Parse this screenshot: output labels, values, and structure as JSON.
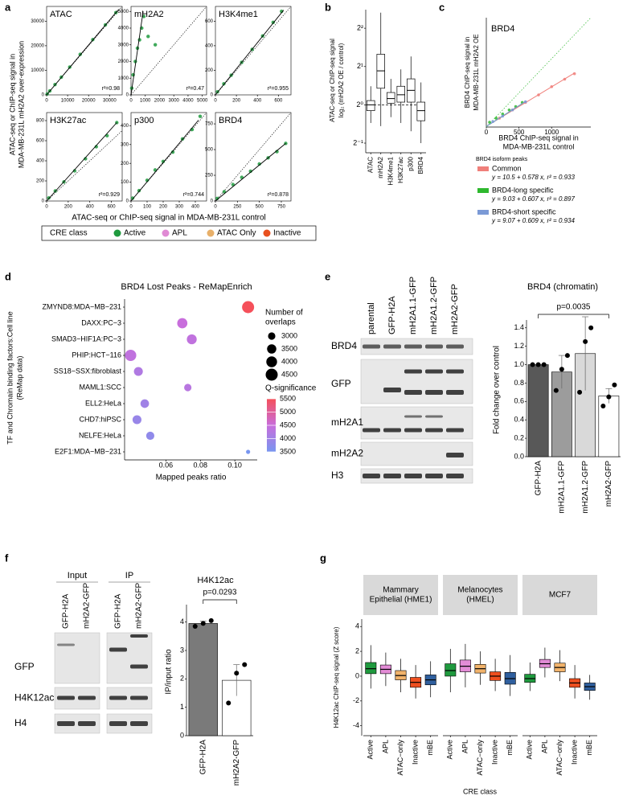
{
  "panel_labels": [
    "a",
    "b",
    "c",
    "d",
    "e",
    "f",
    "g"
  ],
  "blots": [
    {
      "lanes": [
        "parental",
        "GFP-H2A",
        "mH2A1.1-GFP",
        "mH2A1.2-GFP",
        "mH2A2-GFP"
      ],
      "rows": [
        "BRD4",
        "GFP",
        "mH2A1",
        "mH2A2",
        "H3"
      ]
    },
    {
      "groups": [
        {
          "name": "Input",
          "lanes": [
            "GFP-H2A",
            "mH2A2-GFP"
          ]
        },
        {
          "name": "IP",
          "lanes": [
            "GFP-H2A",
            "mH2A2-GFP"
          ]
        }
      ],
      "rows": [
        "GFP",
        "H4K12ac",
        "H4"
      ]
    }
  ],
  "chart_data": [
    {
      "type": "scatter_grid",
      "ylabel": [
        "ATAC-seq or ChIP-seq signal in",
        "MDA-MB-231L mH2A2 over-expression"
      ],
      "xlabel": "ATAC-seq or ChIP-seq signal in MDA-MB-231L control",
      "legend_title": "CRE class",
      "classes": [
        {
          "name": "Active",
          "color": "#1f9a3e"
        },
        {
          "name": "APL",
          "color": "#e08ad4"
        },
        {
          "name": "ATAC Only",
          "color": "#e8b06a"
        },
        {
          "name": "Inactive",
          "color": "#e8501e"
        }
      ],
      "panels": [
        {
          "title": "ATAC",
          "annotation": "r²=0.98",
          "xlim": [
            0,
            36000
          ],
          "ylim": [
            0,
            36000
          ],
          "xticks": [
            0,
            10000,
            20000,
            30000
          ],
          "yticks": [
            0,
            10000,
            20000,
            30000
          ],
          "points": {
            "x": [
              300,
              1500,
              4000,
              7000,
              11000,
              16000,
              22000,
              28000,
              33000
            ],
            "y": [
              400,
              1600,
              4200,
              7200,
              11300,
              16500,
              22500,
              28500,
              33500
            ]
          },
          "fit": {
            "x": [
              0,
              34000
            ],
            "y": [
              0,
              34500
            ]
          }
        },
        {
          "title": "mH2A2",
          "annotation": "r²=0.47",
          "xlim": [
            0,
            5300
          ],
          "ylim": [
            0,
            5300
          ],
          "xticks": [
            0,
            1000,
            2000,
            3000,
            4000,
            5000
          ],
          "yticks": [
            0,
            1000,
            2000,
            3000,
            4000,
            5000
          ],
          "points": {
            "x": [
              50,
              150,
              300,
              450,
              600,
              750,
              900,
              1200,
              1700
            ],
            "y": [
              400,
              1200,
              2000,
              2800,
              3300,
              4000,
              4700,
              3500,
              3000
            ]
          },
          "fit": {
            "x": [
              0,
              850
            ],
            "y": [
              0,
              5000
            ]
          }
        },
        {
          "title": "H3K4me1",
          "annotation": "r²=0.955",
          "xlim": [
            0,
            720
          ],
          "ylim": [
            0,
            720
          ],
          "xticks": [
            0,
            200,
            400,
            600
          ],
          "yticks": [
            0,
            200,
            400,
            600
          ],
          "points": {
            "x": [
              20,
              80,
              150,
              250,
              350,
              450,
              550,
              630
            ],
            "y": [
              25,
              90,
              160,
              265,
              370,
              480,
              590,
              680
            ]
          },
          "fit": {
            "x": [
              0,
              650
            ],
            "y": [
              0,
              690
            ]
          }
        },
        {
          "title": "H3K27ac",
          "annotation": "r²=0.929",
          "xlim": [
            0,
            700
          ],
          "ylim": [
            0,
            880
          ],
          "xticks": [
            0,
            200,
            400,
            600
          ],
          "yticks": [
            0,
            200,
            400,
            600,
            800
          ],
          "points": {
            "x": [
              20,
              80,
              160,
              260,
              360,
              460,
              560,
              650
            ],
            "y": [
              30,
              100,
              190,
              300,
              420,
              540,
              650,
              780
            ]
          },
          "fit": {
            "x": [
              0,
              650
            ],
            "y": [
              0,
              780
            ]
          }
        },
        {
          "title": "p300",
          "annotation": "r²=0.744",
          "xlim": [
            0,
            470
          ],
          "ylim": [
            0,
            470
          ],
          "xticks": [
            0,
            100,
            200,
            300,
            400
          ],
          "yticks": [
            0,
            100,
            200,
            300,
            400
          ],
          "points": {
            "x": [
              10,
              50,
              100,
              150,
              200,
              260,
              320,
              380,
              430
            ],
            "y": [
              15,
              55,
              110,
              165,
              210,
              260,
              330,
              380,
              450
            ]
          },
          "fit": {
            "x": [
              0,
              420
            ],
            "y": [
              0,
              430
            ]
          }
        },
        {
          "title": "BRD4",
          "annotation": "r²=0.878",
          "xlim": [
            0,
            860
          ],
          "ylim": [
            0,
            860
          ],
          "xticks": [
            0,
            250,
            500,
            750
          ],
          "yticks": [
            0,
            250,
            500,
            750
          ],
          "points": {
            "x": [
              20,
              100,
              200,
              300,
              400,
              500,
              600,
              700,
              800
            ],
            "y": [
              25,
              90,
              160,
              230,
              290,
              360,
              420,
              480,
              560
            ]
          },
          "fit": {
            "x": [
              0,
              800
            ],
            "y": [
              0,
              560
            ]
          }
        }
      ]
    },
    {
      "type": "box",
      "ylabel": [
        "ATAC-seq or ChIP-seq signal",
        "log₂ (mH2A2 OE / control)"
      ],
      "log_base": 2,
      "ylim": [
        0.42,
        5.6
      ],
      "hline": 1,
      "yticks": [
        {
          "value": 0.5,
          "label": "2⁻¹"
        },
        {
          "value": 1,
          "label": "2⁰"
        },
        {
          "value": 2,
          "label": "2¹"
        },
        {
          "value": 4,
          "label": "2²"
        }
      ],
      "categories": [
        "ATAC",
        "mH2A2",
        "H3K4me1",
        "H3K27ac",
        "p300",
        "BRD4"
      ],
      "low": [
        0.72,
        0.68,
        0.8,
        0.72,
        0.62,
        0.5
      ],
      "q1": [
        0.9,
        1.35,
        1.03,
        1.05,
        1.05,
        0.75
      ],
      "median": [
        1.0,
        1.85,
        1.12,
        1.2,
        1.3,
        0.9
      ],
      "q3": [
        1.08,
        2.5,
        1.25,
        1.4,
        1.6,
        1.05
      ],
      "high": [
        1.4,
        5.3,
        1.6,
        1.9,
        2.4,
        1.5
      ]
    },
    {
      "type": "scatter",
      "title": "BRD4",
      "xlabel": [
        "BRD4 ChIP-seq signal in",
        "MDA-MB-231L control"
      ],
      "ylabel": [
        "BRD4 ChIP-seq signal in",
        "MDA-MB-231L mH2A2 OE"
      ],
      "xlim": [
        0,
        1600
      ],
      "ylim": [
        0,
        1600
      ],
      "xticks": [
        0,
        500,
        1000
      ],
      "legend_title": "BRD4 isoform peaks",
      "series": [
        {
          "name": "Common",
          "color": "#f07f7a",
          "equation": "y = 10.5 + 0.578  x,  r² = 0.933",
          "intercept": 10.5,
          "slope": 0.578,
          "x": [
            200,
            400,
            600,
            800,
            1000,
            1200,
            1350
          ],
          "y": [
            130,
            250,
            360,
            470,
            590,
            700,
            780
          ]
        },
        {
          "name": "BRD4-long specific",
          "color": "#2eb82e",
          "equation": "y = 9.03 + 0.607  x,  r² = 0.897",
          "intercept": 9.03,
          "slope": 0.607,
          "x": [
            50,
            150,
            250,
            350,
            450,
            550
          ],
          "y": [
            70,
            130,
            190,
            250,
            300,
            360
          ]
        },
        {
          "name": "BRD4-short specific",
          "color": "#7b9ad6",
          "equation": "y = 9.07 + 0.609  x,  r² = 0.934",
          "intercept": 9.07,
          "slope": 0.609,
          "x": [
            100,
            250,
            400,
            600
          ],
          "y": [
            80,
            160,
            250,
            370
          ]
        }
      ]
    },
    {
      "type": "bubble",
      "title": "BRD4 Lost Peaks - ReMapEnrich",
      "ylabel": [
        "TF and Chromain binding factors:Cell line",
        "(ReMap data)"
      ],
      "xlabel": "Mapped peaks ratio",
      "categories": [
        "ZMYND8:MDA−MB−231",
        "DAXX:PC−3",
        "SMAD3−HIF1A:PC−3",
        "PHIP:HCT−116",
        "SS18−SSX:fibroblast",
        "MAML1:SCC",
        "ELL2:HeLa",
        "CHD7:hiPSC",
        "NELFE:HeLa",
        "E2F1:MDA−MB−231"
      ],
      "values": [
        0.1077,
        0.0695,
        0.075,
        0.0395,
        0.044,
        0.0727,
        0.0477,
        0.0432,
        0.0509,
        0.1077
      ],
      "sizes": [
        4500,
        3800,
        3700,
        4200,
        3400,
        3000,
        3300,
        3400,
        3200,
        2500
      ],
      "q": [
        5500,
        4500,
        4400,
        4400,
        4200,
        4300,
        4000,
        3900,
        3800,
        3500
      ],
      "xlim": [
        0.036,
        0.113
      ],
      "xticks": [
        0.06,
        0.08,
        {
          "value": 0.1,
          "label": "0.10"
        }
      ],
      "size_title": [
        "Number of",
        "overlaps"
      ],
      "size_legend": [
        3000,
        3500,
        4000,
        4500
      ],
      "color_title": "Q-significance",
      "color_legend": [
        5500,
        5000,
        4500,
        4000,
        3500
      ]
    },
    {
      "type": "bar",
      "title": "BRD4 (chromatin)",
      "ylabel": "Fold change over control",
      "annotation": "p=0.0035",
      "categories": [
        "GFP-H2A",
        "mH2A1.1-GFP",
        "mH2A1.2-GFP",
        "mH2A2-GFP"
      ],
      "values": [
        1.0,
        0.92,
        1.12,
        0.66
      ],
      "errors": [
        0,
        0.18,
        0.4,
        0.08
      ],
      "points": [
        [
          1,
          1,
          1
        ],
        [
          0.72,
          0.95,
          1.1
        ],
        [
          0.7,
          1.25,
          1.4
        ],
        [
          0.55,
          0.65,
          0.78
        ]
      ],
      "colors": [
        "#585858",
        "#9c9c9c",
        "#d9d9d9",
        "#ffffff"
      ],
      "ylim": [
        0,
        1.45
      ],
      "yticks": [
        {
          "value": 0,
          "label": "0.0"
        },
        0.2,
        0.4,
        0.6,
        0.8,
        {
          "value": 1,
          "label": "1.0"
        },
        1.2,
        1.4
      ]
    },
    {
      "type": "bar",
      "title": "H4K12ac",
      "ylabel": "IP/input ratio",
      "annotation": "p=0.0293",
      "categories": [
        "GFP-H2A",
        "mH2A2-GFP"
      ],
      "values": [
        3.95,
        1.95
      ],
      "errors": [
        0.08,
        0.55
      ],
      "points": [
        [
          3.85,
          3.95,
          4.05
        ],
        [
          1.15,
          2.2,
          2.5
        ]
      ],
      "colors": [
        "#7a7a7a",
        "#ffffff"
      ],
      "ylim": [
        0,
        4.5
      ],
      "yticks": [
        0,
        1,
        2,
        3,
        4
      ]
    },
    {
      "type": "facet_box",
      "ylabel": "H4K12ac ChIP-seq signal (Z score)",
      "xlabel": "CRE class",
      "ylim": [
        -4.8,
        4.6
      ],
      "yticks": [
        -4,
        -2,
        0,
        2,
        4
      ],
      "colors": [
        "#1f9a3e",
        "#e38cd6",
        "#f2b36b",
        "#ef4f1f",
        "#2f5f9e"
      ],
      "facets": [
        {
          "title": [
            "Mammary",
            "Epithelial (HME1)"
          ],
          "categories": [
            "Active",
            "APL",
            "ATAC−only",
            "Inactive",
            "mBE"
          ],
          "low": [
            -1.0,
            -0.8,
            -1.3,
            -1.8,
            -1.7
          ],
          "q1": [
            0.2,
            0.2,
            -0.3,
            -0.9,
            -0.7
          ],
          "median": [
            0.6,
            0.55,
            0.05,
            -0.5,
            -0.3
          ],
          "q3": [
            1.1,
            0.9,
            0.45,
            -0.1,
            0.1
          ],
          "high": [
            2.5,
            1.9,
            1.4,
            0.9,
            1.2
          ]
        },
        {
          "title": [
            "Melanocytes",
            "(HMEL)"
          ],
          "categories": [
            "Active",
            "APL",
            "ATAC−only",
            "Inactive",
            "mBE"
          ],
          "low": [
            -1.3,
            -0.9,
            -0.7,
            -1.2,
            -1.6
          ],
          "q1": [
            0,
            0.35,
            0.25,
            -0.35,
            -0.65
          ],
          "median": [
            0.45,
            0.8,
            0.6,
            0,
            -0.2
          ],
          "q3": [
            1.0,
            1.3,
            0.95,
            0.35,
            0.3
          ],
          "high": [
            2.2,
            2.6,
            2.0,
            1.4,
            1.7
          ]
        },
        {
          "title": [
            "MCF7"
          ],
          "categories": [
            "Active",
            "APL",
            "ATAC−only",
            "Inactive",
            "mBE"
          ],
          "low": [
            -1.2,
            -0.1,
            -0.4,
            -1.8,
            -1.9
          ],
          "q1": [
            -0.5,
            0.7,
            0.35,
            -0.9,
            -1.15
          ],
          "median": [
            -0.2,
            1.0,
            0.7,
            -0.55,
            -0.85
          ],
          "q3": [
            0.15,
            1.35,
            1.05,
            -0.2,
            -0.55
          ],
          "high": [
            1.1,
            2.3,
            2.1,
            0.9,
            0.1
          ]
        }
      ]
    }
  ]
}
